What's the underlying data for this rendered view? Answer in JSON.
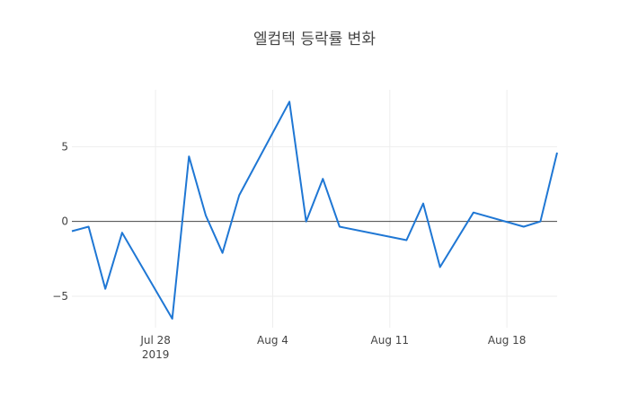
{
  "chart_data": {
    "type": "line",
    "title": "엘컴텍 등락률 변화",
    "xlabel": "",
    "ylabel": "",
    "x_range": [
      "2019-07-23",
      "2019-08-21"
    ],
    "ylim": [
      -7.1,
      8.8
    ],
    "grid": true,
    "legend": "none",
    "x_ticks": [
      {
        "date": "2019-07-28",
        "label": "Jul 28",
        "sublabel": "2019"
      },
      {
        "date": "2019-08-04",
        "label": "Aug 4",
        "sublabel": ""
      },
      {
        "date": "2019-08-11",
        "label": "Aug 11",
        "sublabel": ""
      },
      {
        "date": "2019-08-18",
        "label": "Aug 18",
        "sublabel": ""
      }
    ],
    "y_ticks": [
      {
        "value": 5,
        "label": "5"
      },
      {
        "value": 0,
        "label": "0"
      },
      {
        "value": -5,
        "label": "−5"
      }
    ],
    "series": [
      {
        "color": "#1f77d4",
        "x": [
          "2019-07-23",
          "2019-07-24",
          "2019-07-25",
          "2019-07-26",
          "2019-07-29",
          "2019-07-30",
          "2019-07-31",
          "2019-08-01",
          "2019-08-02",
          "2019-08-05",
          "2019-08-06",
          "2019-08-07",
          "2019-08-08",
          "2019-08-12",
          "2019-08-13",
          "2019-08-14",
          "2019-08-16",
          "2019-08-19",
          "2019-08-20",
          "2019-08-21"
        ],
        "y": [
          -0.65,
          -0.35,
          -4.5,
          -0.75,
          -6.5,
          4.35,
          0.4,
          -2.1,
          1.75,
          8.0,
          0.0,
          2.85,
          -0.35,
          -1.25,
          1.2,
          -3.05,
          0.6,
          -0.35,
          0.0,
          4.6
        ]
      }
    ]
  }
}
